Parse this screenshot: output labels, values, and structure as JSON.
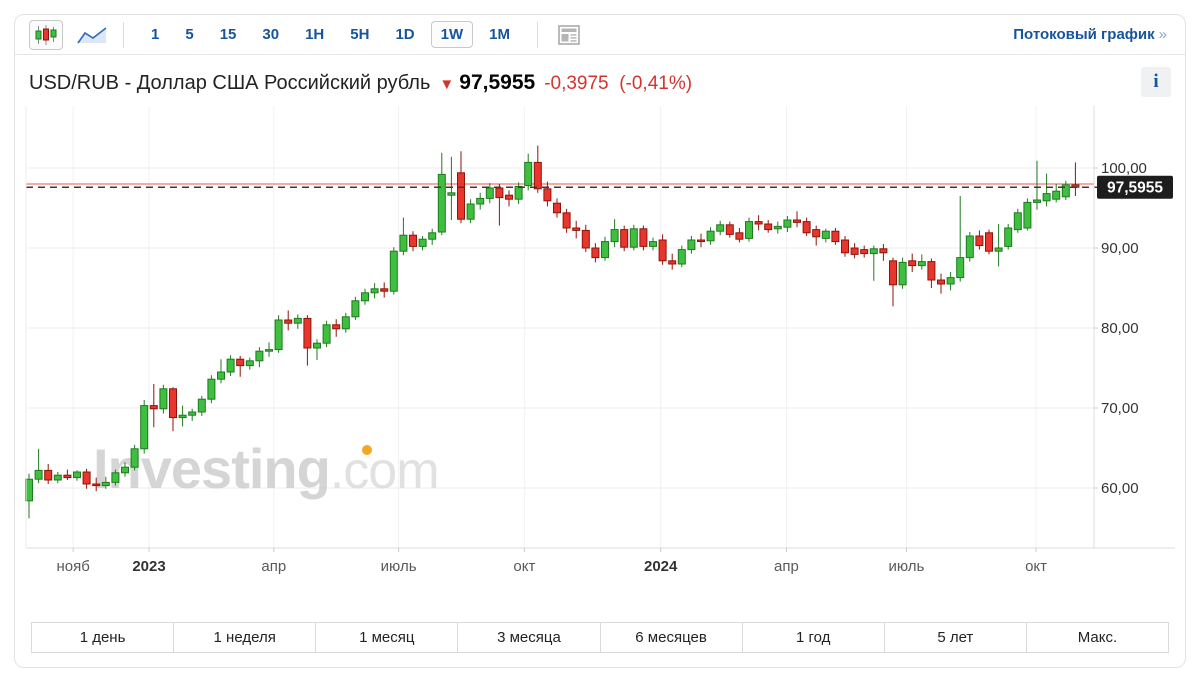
{
  "toolbar": {
    "chart_type": [
      {
        "icon": "candlestick-chart-icon",
        "selected": true
      },
      {
        "icon": "area-chart-icon",
        "selected": false
      }
    ],
    "timeframes": [
      "1",
      "5",
      "15",
      "30",
      "1H",
      "5H",
      "1D",
      "1W",
      "1M"
    ],
    "selected_timeframe": "1W",
    "news_icon": "news-panel-icon",
    "streaming_link": "Потоковый график",
    "streaming_link_arrow": "»"
  },
  "header": {
    "title": "USD/RUB - Доллар США Российский рубль",
    "direction_arrow": "▼",
    "price": "97,5955",
    "change": "-0,3975",
    "change_percent": "(-0,41%)",
    "info_button": "i"
  },
  "watermark": {
    "part1": "Investing",
    "part2": ".com"
  },
  "chart_data": {
    "type": "candlestick",
    "pair": "USD/RUB",
    "interval": "1W",
    "current_price": 97.5955,
    "current_price_label": "97,5955",
    "previous_close": 97.993,
    "grid": true,
    "y_ticks": [
      {
        "value": 100,
        "label": "100,00"
      },
      {
        "value": 90,
        "label": "90,00"
      },
      {
        "value": 80,
        "label": "80,00"
      },
      {
        "value": 70,
        "label": "70,00"
      },
      {
        "value": 60,
        "label": "60,00"
      }
    ],
    "y_axis_range": [
      52.5,
      103.8
    ],
    "x_ticks": [
      {
        "pos": 4.6,
        "label": "нояб",
        "year": false
      },
      {
        "pos": 12.5,
        "label": "2023",
        "year": true
      },
      {
        "pos": 25.5,
        "label": "апр",
        "year": false
      },
      {
        "pos": 38.5,
        "label": "июль",
        "year": false
      },
      {
        "pos": 51.6,
        "label": "окт",
        "year": false
      },
      {
        "pos": 65.8,
        "label": "2024",
        "year": true
      },
      {
        "pos": 78.9,
        "label": "апр",
        "year": false
      },
      {
        "pos": 91.4,
        "label": "июль",
        "year": false
      },
      {
        "pos": 104.9,
        "label": "окт",
        "year": false
      }
    ],
    "candles_format": [
      "open",
      "high",
      "low",
      "close"
    ],
    "candles": [
      [
        58.4,
        61.8,
        56.2,
        61.1
      ],
      [
        61.1,
        64.9,
        60.6,
        62.2
      ],
      [
        62.2,
        63.0,
        60.5,
        61.0
      ],
      [
        61.0,
        62.0,
        60.6,
        61.6
      ],
      [
        61.6,
        62.3,
        61.0,
        61.3
      ],
      [
        61.3,
        62.2,
        60.9,
        62.0
      ],
      [
        62.0,
        62.4,
        59.9,
        60.5
      ],
      [
        60.5,
        61.3,
        59.6,
        60.3
      ],
      [
        60.3,
        61.4,
        59.9,
        60.7
      ],
      [
        60.7,
        62.3,
        60.3,
        61.9
      ],
      [
        61.9,
        63.2,
        61.4,
        62.6
      ],
      [
        62.6,
        65.4,
        62.2,
        64.9
      ],
      [
        64.9,
        71.0,
        64.3,
        70.3
      ],
      [
        70.3,
        73.0,
        67.6,
        69.9
      ],
      [
        69.9,
        72.9,
        69.3,
        72.4
      ],
      [
        72.4,
        72.6,
        67.1,
        68.8
      ],
      [
        68.8,
        70.3,
        67.7,
        69.1
      ],
      [
        69.1,
        69.9,
        68.4,
        69.5
      ],
      [
        69.5,
        71.5,
        69.0,
        71.1
      ],
      [
        71.1,
        74.1,
        70.6,
        73.6
      ],
      [
        73.6,
        76.1,
        73.1,
        74.5
      ],
      [
        74.5,
        76.6,
        74.0,
        76.1
      ],
      [
        76.1,
        76.5,
        73.9,
        75.3
      ],
      [
        75.3,
        76.3,
        74.8,
        75.9
      ],
      [
        75.9,
        77.6,
        75.1,
        77.1
      ],
      [
        77.1,
        78.2,
        76.4,
        77.3
      ],
      [
        77.3,
        81.6,
        76.9,
        81.0
      ],
      [
        81.0,
        82.2,
        79.7,
        80.6
      ],
      [
        80.6,
        81.7,
        79.9,
        81.2
      ],
      [
        81.2,
        81.6,
        75.3,
        77.5
      ],
      [
        77.5,
        78.6,
        76.0,
        78.1
      ],
      [
        78.1,
        80.9,
        77.6,
        80.4
      ],
      [
        80.4,
        81.1,
        78.9,
        79.9
      ],
      [
        79.9,
        81.9,
        79.4,
        81.4
      ],
      [
        81.4,
        83.9,
        81.0,
        83.4
      ],
      [
        83.4,
        84.9,
        82.9,
        84.4
      ],
      [
        84.4,
        85.6,
        83.7,
        84.9
      ],
      [
        84.9,
        85.7,
        83.8,
        84.6
      ],
      [
        84.6,
        90.1,
        84.2,
        89.6
      ],
      [
        89.6,
        93.8,
        89.1,
        91.6
      ],
      [
        91.6,
        92.1,
        89.6,
        90.2
      ],
      [
        90.2,
        91.5,
        89.7,
        91.1
      ],
      [
        91.1,
        92.4,
        90.4,
        91.9
      ],
      [
        92.0,
        101.9,
        91.6,
        99.2
      ],
      [
        96.6,
        101.4,
        93.5,
        96.9
      ],
      [
        99.4,
        102.1,
        93.1,
        93.6
      ],
      [
        93.6,
        96.1,
        93.1,
        95.5
      ],
      [
        95.5,
        96.9,
        94.8,
        96.2
      ],
      [
        96.2,
        98.1,
        95.6,
        97.5
      ],
      [
        97.5,
        98.0,
        92.8,
        96.3
      ],
      [
        96.6,
        97.2,
        95.2,
        96.1
      ],
      [
        96.1,
        98.2,
        95.5,
        97.7
      ],
      [
        97.8,
        101.8,
        97.2,
        100.7
      ],
      [
        100.7,
        102.8,
        96.9,
        97.4
      ],
      [
        97.4,
        98.3,
        95.2,
        95.9
      ],
      [
        95.6,
        96.2,
        93.8,
        94.4
      ],
      [
        94.4,
        94.9,
        91.9,
        92.5
      ],
      [
        92.5,
        93.4,
        91.2,
        92.2
      ],
      [
        92.2,
        92.9,
        89.5,
        90.0
      ],
      [
        90.0,
        90.6,
        88.2,
        88.8
      ],
      [
        88.8,
        91.4,
        88.4,
        90.8
      ],
      [
        90.8,
        93.6,
        90.1,
        92.3
      ],
      [
        92.3,
        92.8,
        89.6,
        90.1
      ],
      [
        90.1,
        92.9,
        89.7,
        92.4
      ],
      [
        92.4,
        92.8,
        89.7,
        90.2
      ],
      [
        90.2,
        91.3,
        89.7,
        90.8
      ],
      [
        91.0,
        91.7,
        87.9,
        88.4
      ],
      [
        88.4,
        89.3,
        87.3,
        88.0
      ],
      [
        88.0,
        90.3,
        87.6,
        89.8
      ],
      [
        89.8,
        91.5,
        89.3,
        91.0
      ],
      [
        91.0,
        91.8,
        90.1,
        90.9
      ],
      [
        90.9,
        92.6,
        90.4,
        92.1
      ],
      [
        92.1,
        93.4,
        91.6,
        92.9
      ],
      [
        92.9,
        93.3,
        91.3,
        91.7
      ],
      [
        91.9,
        92.5,
        90.7,
        91.1
      ],
      [
        91.2,
        93.8,
        90.8,
        93.3
      ],
      [
        93.3,
        94.1,
        92.2,
        93.0
      ],
      [
        93.0,
        93.5,
        91.9,
        92.3
      ],
      [
        92.4,
        93.3,
        91.8,
        92.7
      ],
      [
        92.6,
        94.0,
        92.0,
        93.5
      ],
      [
        93.5,
        94.6,
        92.6,
        93.2
      ],
      [
        93.3,
        93.8,
        91.5,
        91.9
      ],
      [
        92.3,
        92.8,
        90.3,
        91.4
      ],
      [
        91.2,
        92.4,
        90.7,
        92.1
      ],
      [
        92.1,
        92.5,
        90.4,
        90.8
      ],
      [
        91.0,
        91.5,
        88.9,
        89.4
      ],
      [
        90.0,
        90.6,
        88.7,
        89.2
      ],
      [
        89.8,
        90.3,
        88.8,
        89.3
      ],
      [
        89.3,
        90.3,
        85.9,
        89.9
      ],
      [
        89.9,
        90.5,
        88.4,
        89.4
      ],
      [
        88.4,
        88.8,
        82.7,
        85.4
      ],
      [
        85.4,
        88.8,
        84.9,
        88.2
      ],
      [
        88.4,
        89.3,
        87.0,
        87.8
      ],
      [
        87.8,
        89.2,
        87.3,
        88.3
      ],
      [
        88.3,
        88.7,
        85.0,
        86.0
      ],
      [
        86.0,
        86.8,
        84.3,
        85.5
      ],
      [
        85.5,
        87.0,
        84.7,
        86.3
      ],
      [
        86.3,
        96.5,
        85.8,
        88.8
      ],
      [
        88.8,
        92.0,
        88.3,
        91.5
      ],
      [
        91.5,
        92.2,
        89.8,
        90.3
      ],
      [
        91.9,
        92.3,
        89.2,
        89.6
      ],
      [
        89.6,
        93.0,
        87.7,
        90.0
      ],
      [
        90.2,
        93.0,
        89.8,
        92.5
      ],
      [
        92.3,
        94.9,
        91.9,
        94.4
      ],
      [
        92.5,
        96.2,
        92.2,
        95.7
      ],
      [
        95.7,
        100.9,
        94.8,
        96.0
      ],
      [
        95.9,
        99.3,
        95.2,
        96.8
      ],
      [
        96.1,
        98.0,
        95.7,
        97.1
      ],
      [
        96.4,
        98.4,
        96.0,
        97.9
      ],
      [
        97.9,
        100.7,
        96.5,
        97.6
      ]
    ]
  },
  "range_buttons": [
    "1 день",
    "1 неделя",
    "1 месяц",
    "3 месяца",
    "6 месяцев",
    "1 год",
    "5 лет",
    "Макс."
  ],
  "colors": {
    "up_fill": "#3fbf3f",
    "up_border": "#1e7a1e",
    "down_fill": "#e8352e",
    "down_border": "#8e1408",
    "accent_blue": "#17549e",
    "change_red": "#d23530",
    "prev_close_line": "#f5aaa4",
    "price_dash_line": "#3a3a3a",
    "price_badge_bg": "#1d1d1d",
    "watermark": "#cbcbcb",
    "watermark_dot": "#f5a623"
  }
}
